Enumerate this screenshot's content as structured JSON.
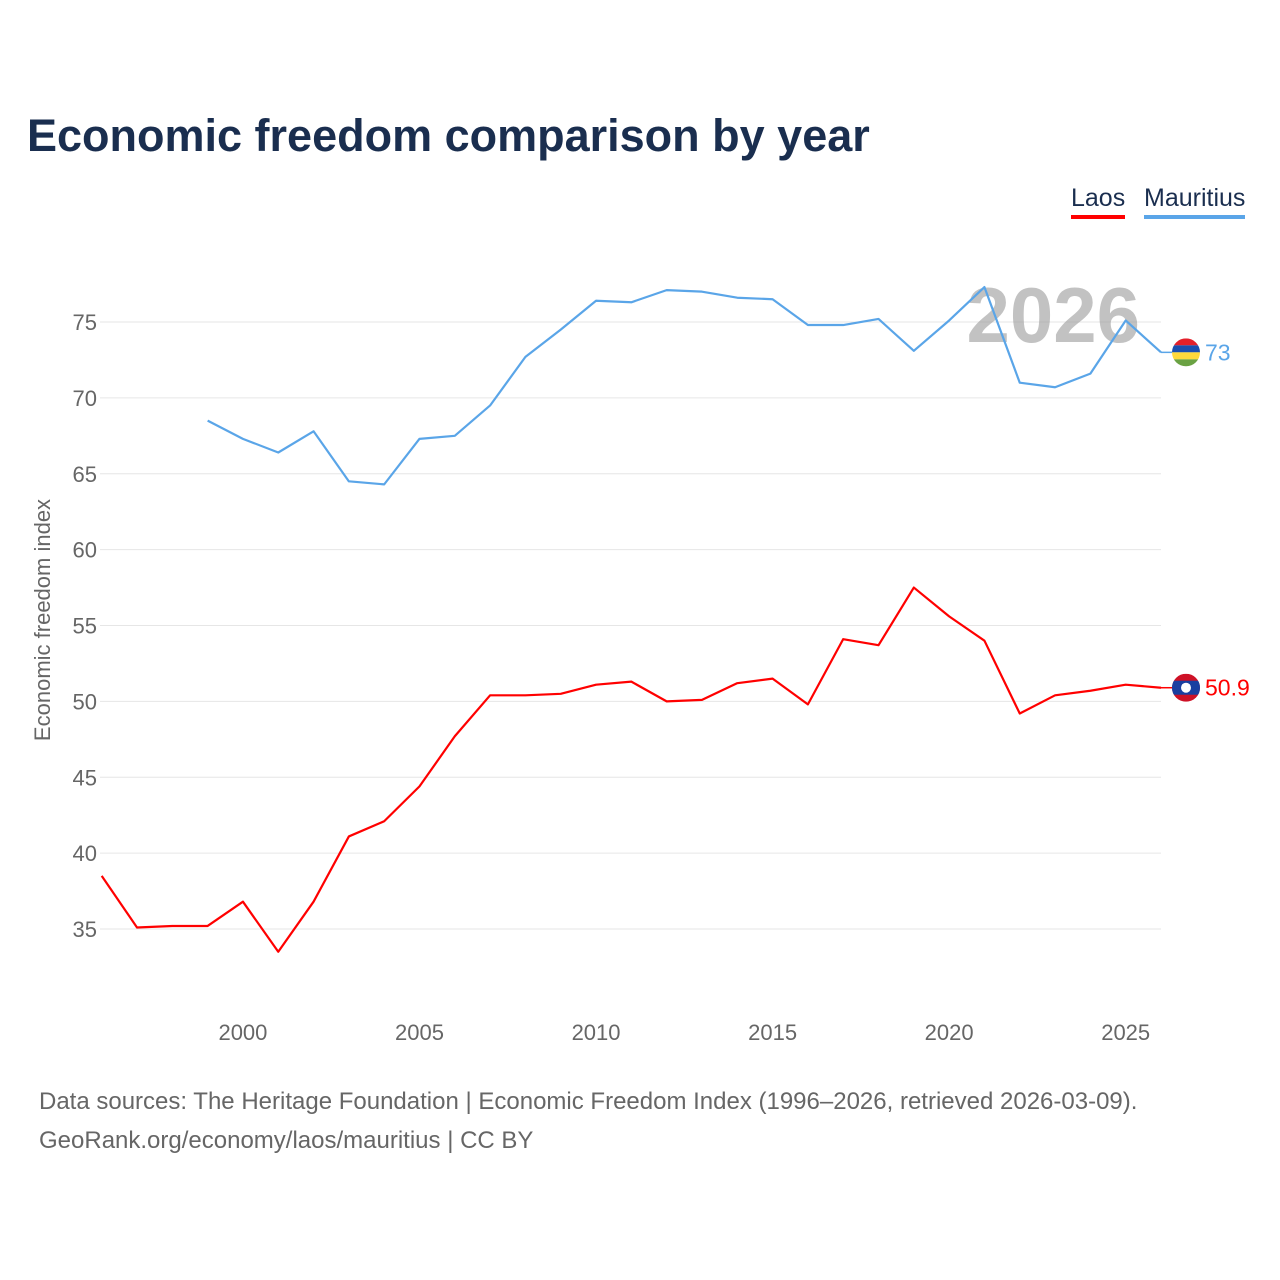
{
  "chart_data": {
    "type": "line",
    "title": "Economic freedom comparison by year",
    "xlabel": "",
    "ylabel": "Economic freedom index",
    "xlim": [
      1996,
      2026
    ],
    "ylim": [
      30.5,
      79
    ],
    "yticks": [
      35,
      40,
      45,
      50,
      55,
      60,
      65,
      70,
      75
    ],
    "xticks": [
      2000,
      2005,
      2010,
      2015,
      2020,
      2025
    ],
    "grid": true,
    "legend_placement": "top-right",
    "year_watermark": "2026",
    "series": [
      {
        "name": "Laos",
        "color": "#ff0000",
        "end_label": "50.9",
        "x": [
          1996,
          1997,
          1998,
          1999,
          2000,
          2001,
          2002,
          2003,
          2004,
          2005,
          2006,
          2007,
          2008,
          2009,
          2010,
          2011,
          2012,
          2013,
          2014,
          2015,
          2016,
          2017,
          2018,
          2019,
          2020,
          2021,
          2022,
          2023,
          2024,
          2025,
          2026
        ],
        "values": [
          38.5,
          35.1,
          35.2,
          35.2,
          36.8,
          33.5,
          36.8,
          41.1,
          42.1,
          44.4,
          47.7,
          50.4,
          50.4,
          50.5,
          51.1,
          51.3,
          50.0,
          50.1,
          51.2,
          51.5,
          49.8,
          54.1,
          53.7,
          57.5,
          55.6,
          54.0,
          49.2,
          50.4,
          50.7,
          51.1,
          50.9
        ]
      },
      {
        "name": "Mauritius",
        "color": "#5aa5e8",
        "end_label": "73",
        "x": [
          1999,
          2000,
          2001,
          2002,
          2003,
          2004,
          2005,
          2006,
          2007,
          2008,
          2009,
          2010,
          2011,
          2012,
          2013,
          2014,
          2015,
          2016,
          2017,
          2018,
          2019,
          2020,
          2021,
          2022,
          2023,
          2024,
          2025,
          2026
        ],
        "values": [
          68.5,
          67.3,
          66.4,
          67.8,
          64.5,
          64.3,
          67.3,
          67.5,
          69.5,
          72.7,
          74.5,
          76.4,
          76.3,
          77.1,
          77.0,
          76.6,
          76.5,
          74.8,
          74.8,
          75.2,
          73.1,
          75.1,
          77.3,
          71.0,
          70.7,
          71.6,
          75.1,
          73.0
        ]
      }
    ]
  },
  "footer": {
    "line1": "Data sources: The Heritage Foundation | Economic Freedom Index (1996–2026, retrieved 2026-03-09).",
    "line2": "GeoRank.org/economy/laos/mauritius | CC BY"
  }
}
